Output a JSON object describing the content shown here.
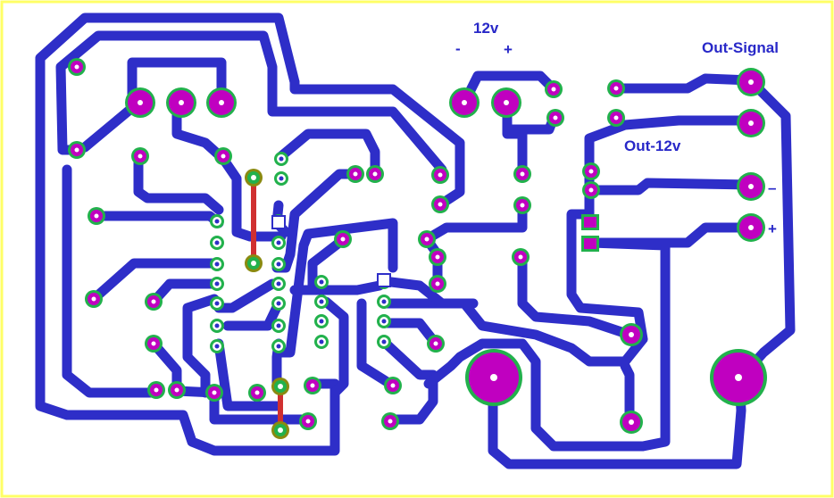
{
  "labels": {
    "supply": "12v",
    "supply_minus": "-",
    "supply_plus": "+",
    "out_signal": "Out-Signal",
    "out_12v": "Out-12v",
    "out_minus": "–",
    "out_plus": "+"
  },
  "colors": {
    "background": "#ffffff",
    "border": "#ffff66",
    "trace": "#2e2ec8",
    "pad_ring": "#22b14c",
    "pad_fill": "#c000c0",
    "drill": "#ffffff",
    "jumper": "#d03030",
    "jumper_pad": "#8a8a10"
  }
}
